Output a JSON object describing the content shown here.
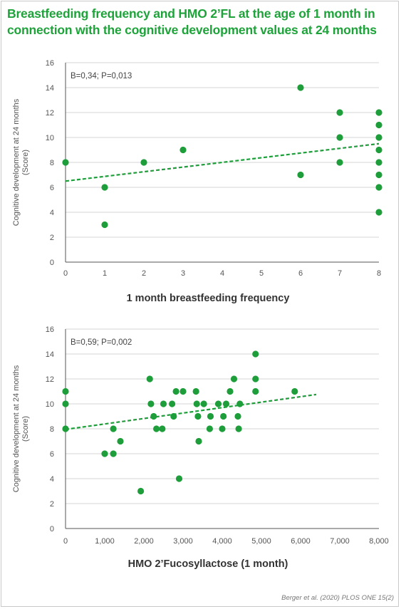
{
  "title": {
    "line1": "Breastfeeding frequency and HMO 2’FL at the age of 1 month in",
    "line2": "connection with the cognitive development values at 24 months"
  },
  "source": "Berger et al. (2020) PLOS ONE 15(2)",
  "colors": {
    "accent": "#1ea33a",
    "point": "#1e9e3a",
    "grid": "#d4d4d4",
    "axis": "#555555"
  },
  "chart_data": [
    {
      "type": "scatter",
      "xlabel": "1 month breastfeeding frequency",
      "ylabel_line1": "Cognitive development at 24 months",
      "ylabel_line2": "(Score)",
      "annotation": "B=0,34; P=0,013",
      "xlim": [
        0,
        8
      ],
      "ylim": [
        0,
        16
      ],
      "x_ticks": [
        0,
        1,
        2,
        3,
        4,
        5,
        6,
        7,
        8
      ],
      "x_tick_labels": [
        "0",
        "1",
        "2",
        "3",
        "4",
        "5",
        "6",
        "7",
        "8"
      ],
      "y_ticks": [
        0,
        2,
        4,
        6,
        8,
        10,
        12,
        14,
        16
      ],
      "y_tick_labels": [
        "0",
        "2",
        "4",
        "6",
        "8",
        "10",
        "12",
        "14",
        "16"
      ],
      "grid": "horizontal",
      "points": [
        [
          0,
          8
        ],
        [
          1,
          6
        ],
        [
          1,
          3
        ],
        [
          2,
          8
        ],
        [
          3,
          9
        ],
        [
          6,
          14
        ],
        [
          6,
          7
        ],
        [
          7,
          12
        ],
        [
          7,
          10
        ],
        [
          7,
          8
        ],
        [
          8,
          12
        ],
        [
          8,
          11
        ],
        [
          8,
          10
        ],
        [
          8,
          9
        ],
        [
          8,
          8
        ],
        [
          8,
          7
        ],
        [
          8,
          6
        ],
        [
          8,
          4
        ]
      ],
      "trend_line": {
        "style": "dashed",
        "x": [
          0,
          8
        ],
        "y": [
          6.5,
          9.5
        ]
      }
    },
    {
      "type": "scatter",
      "xlabel": "HMO 2’Fucosyllactose (1 month)",
      "ylabel_line1": "Cognitive development at 24 months",
      "ylabel_line2": "(Score)",
      "annotation": "B=0,59; P=0,002",
      "xlim": [
        0,
        8000
      ],
      "ylim": [
        0,
        16
      ],
      "x_ticks": [
        0,
        1000,
        2000,
        3000,
        4000,
        5000,
        6000,
        7000,
        8000
      ],
      "x_tick_labels": [
        "0",
        "1,000",
        "2,000",
        "3,000",
        "4,000",
        "5,000",
        "6,000",
        "7,000",
        "8,000"
      ],
      "y_ticks": [
        0,
        2,
        4,
        6,
        8,
        10,
        12,
        14,
        16
      ],
      "y_tick_labels": [
        "0",
        "2",
        "4",
        "6",
        "8",
        "10",
        "12",
        "14",
        "16"
      ],
      "grid": "horizontal",
      "points": [
        [
          0,
          11
        ],
        [
          0,
          10
        ],
        [
          0,
          8
        ],
        [
          1000,
          6
        ],
        [
          1220,
          8
        ],
        [
          1220,
          6
        ],
        [
          1400,
          7
        ],
        [
          1920,
          3
        ],
        [
          2150,
          12
        ],
        [
          2180,
          10
        ],
        [
          2250,
          9
        ],
        [
          2320,
          8
        ],
        [
          2470,
          8
        ],
        [
          2500,
          10
        ],
        [
          2720,
          10
        ],
        [
          2760,
          9
        ],
        [
          2820,
          11
        ],
        [
          2900,
          4
        ],
        [
          3000,
          11
        ],
        [
          3330,
          11
        ],
        [
          3350,
          10
        ],
        [
          3380,
          9
        ],
        [
          3400,
          7
        ],
        [
          3530,
          10
        ],
        [
          3680,
          8
        ],
        [
          3700,
          9
        ],
        [
          3900,
          10
        ],
        [
          4000,
          8
        ],
        [
          4030,
          9
        ],
        [
          4100,
          10
        ],
        [
          4200,
          11
        ],
        [
          4300,
          12
        ],
        [
          4400,
          9
        ],
        [
          4420,
          8
        ],
        [
          4450,
          10
        ],
        [
          4850,
          14
        ],
        [
          4850,
          12
        ],
        [
          4850,
          11
        ],
        [
          5850,
          11
        ]
      ],
      "trend_line": {
        "style": "dashed",
        "x": [
          0,
          6400
        ],
        "y": [
          7.95,
          10.75
        ]
      }
    }
  ]
}
